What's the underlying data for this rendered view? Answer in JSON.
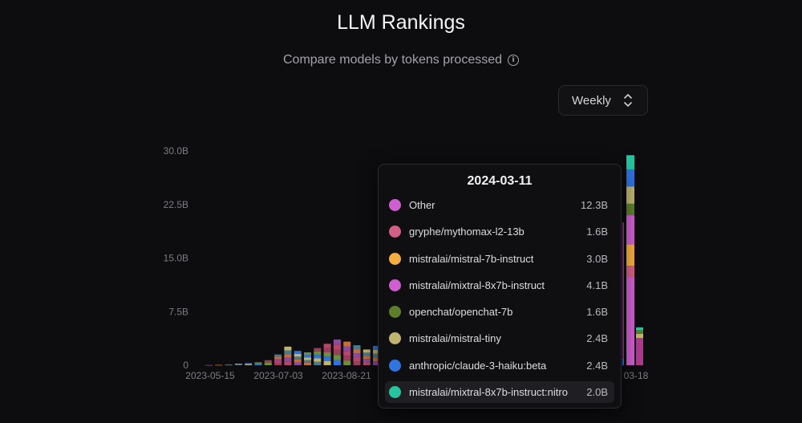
{
  "header": {
    "title": "LLM Rankings",
    "subtitle": "Compare models by tokens processed",
    "info_icon": "info-icon"
  },
  "period_select": {
    "value": "Weekly",
    "icon": "chevron-up-down-icon"
  },
  "chart_data": {
    "type": "bar",
    "stacked": true,
    "y_ticks": [
      "0",
      "7.5B",
      "15.0B",
      "22.5B",
      "30.0B"
    ],
    "ylim": [
      0,
      30
    ],
    "y_unit": "billions of tokens",
    "x_ticks_visible": [
      "2023-05-15",
      "2023-07-03",
      "2023-08-21",
      "03-18"
    ],
    "grid": false,
    "weekly_totals_visible": [
      0.02,
      0.05,
      0.1,
      0.2,
      0.3,
      0.4,
      0.7,
      1.5,
      2.6,
      2.0,
      1.8,
      2.4,
      3.0,
      3.6,
      3.3,
      2.8,
      2.2,
      2.7,
      2.5
    ],
    "hover": {
      "date": "2024-03-11",
      "series": [
        {
          "name": "Other",
          "display": "12.3B",
          "value": 12.3,
          "color": "#cf5fd0"
        },
        {
          "name": "gryphe/mythomax-l2-13b",
          "display": "1.6B",
          "value": 1.6,
          "color": "#d35f86"
        },
        {
          "name": "mistralai/mistral-7b-instruct",
          "display": "3.0B",
          "value": 3.0,
          "color": "#f4ad3f"
        },
        {
          "name": "mistralai/mixtral-8x7b-instruct",
          "display": "4.1B",
          "value": 4.1,
          "color": "#cf5fd0"
        },
        {
          "name": "openchat/openchat-7b",
          "display": "1.6B",
          "value": 1.6,
          "color": "#5e7f2a"
        },
        {
          "name": "mistralai/mistral-tiny",
          "display": "2.4B",
          "value": 2.4,
          "color": "#bfb56f"
        },
        {
          "name": "anthropic/claude-3-haiku:beta",
          "display": "2.4B",
          "value": 2.4,
          "color": "#2f74e0"
        },
        {
          "name": "mistralai/mixtral-8x7b-instruct:nitro",
          "display": "2.0B",
          "value": 2.0,
          "color": "#26c5a0"
        }
      ]
    },
    "last_week_total": 5.3
  }
}
